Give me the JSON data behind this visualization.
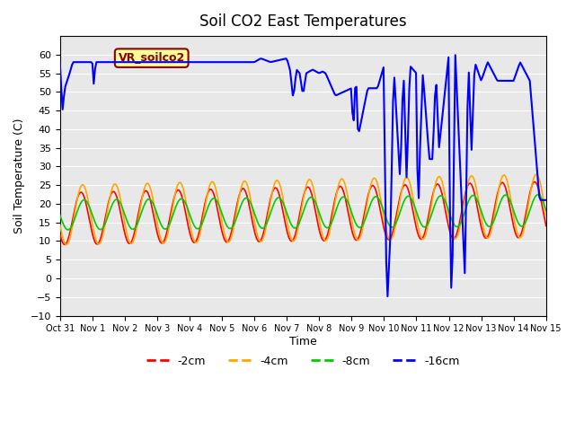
{
  "title": "Soil CO2 East Temperatures",
  "xlabel": "Time",
  "ylabel": "Soil Temperature (C)",
  "ylim": [
    -10,
    65
  ],
  "yticks": [
    -10,
    -5,
    0,
    5,
    10,
    15,
    20,
    25,
    30,
    35,
    40,
    45,
    50,
    55,
    60
  ],
  "label_text": "VR_soilco2",
  "label_bg": "#FFFF99",
  "label_border": "#8B0000",
  "colors": {
    "2cm": "#FF0000",
    "4cm": "#FFA500",
    "8cm": "#00CC00",
    "16cm": "#0000FF"
  },
  "legend_labels": [
    "-2cm",
    "-4cm",
    "-8cm",
    "-16cm"
  ],
  "legend_colors": [
    "#FF0000",
    "#FFA500",
    "#00CC00",
    "#0000FF"
  ],
  "bg_color": "#E8E8E8",
  "x_tick_labels": [
    "Oct 31",
    "Nov 1",
    "Nov 2",
    "Nov 3",
    "Nov 4",
    "Nov 5",
    "Nov 6",
    "Nov 7",
    "Nov 8",
    "Nov 9",
    "Nov 10",
    "Nov 11",
    "Nov 12",
    "Nov 13",
    "Nov 14",
    "Nov 15"
  ],
  "num_days": 15,
  "points_per_day": 24
}
